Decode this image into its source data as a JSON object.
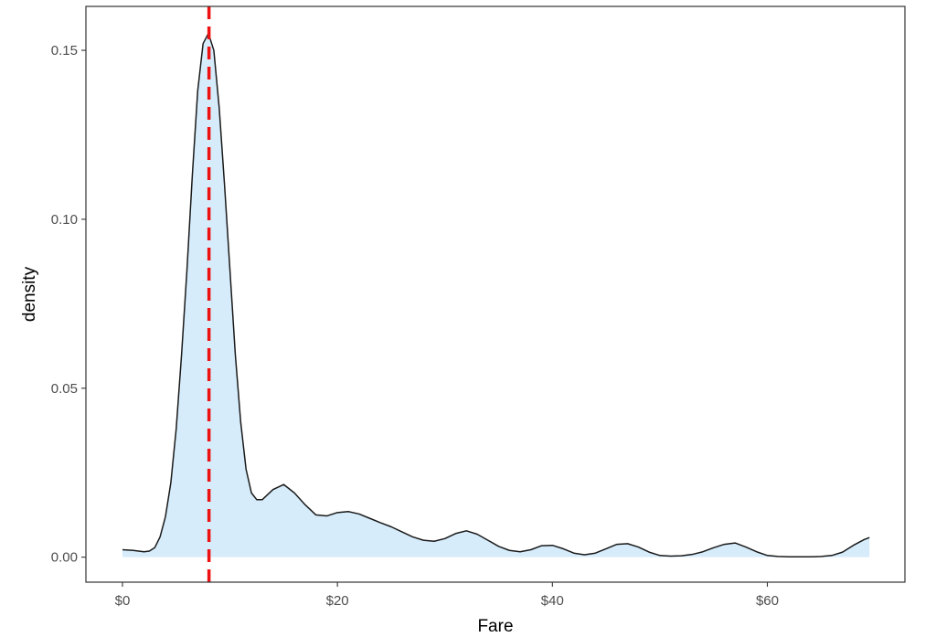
{
  "chart_data": {
    "type": "area",
    "xlabel": "Fare",
    "ylabel": "density",
    "xlim": [
      -3.4,
      72.8
    ],
    "ylim": [
      -0.0074,
      0.163
    ],
    "x_ticks": [
      0,
      20,
      40,
      60
    ],
    "x_tick_labels": [
      "$0",
      "$20",
      "$40",
      "$60"
    ],
    "y_ticks": [
      0.0,
      0.05,
      0.1,
      0.15
    ],
    "y_tick_labels": [
      "0.00",
      "0.05",
      "0.10",
      "0.15"
    ],
    "grid": false,
    "reference_line": {
      "x": 8.05,
      "style": "dashed"
    },
    "series": [
      {
        "x": [
          0,
          1,
          2,
          2.5,
          3,
          3.5,
          4,
          4.5,
          5,
          5.5,
          6,
          6.5,
          7,
          7.5,
          8,
          8.5,
          9,
          9.5,
          10,
          10.5,
          11,
          11.5,
          12,
          12.5,
          13,
          14,
          15,
          16,
          17,
          18,
          19,
          20,
          21,
          22,
          23,
          24,
          25,
          26,
          27,
          28,
          29,
          30,
          31,
          32,
          33,
          34,
          35,
          36,
          37,
          38,
          39,
          40,
          41,
          42,
          43,
          44,
          45,
          46,
          47,
          48,
          49,
          50,
          51,
          52,
          53,
          54,
          55,
          56,
          57,
          58,
          59,
          60,
          61,
          62,
          63,
          64,
          65,
          66,
          67,
          68,
          69,
          69.5
        ],
        "values": [
          0.0022,
          0.002,
          0.0016,
          0.0018,
          0.0028,
          0.006,
          0.012,
          0.022,
          0.038,
          0.06,
          0.085,
          0.113,
          0.138,
          0.152,
          0.155,
          0.15,
          0.133,
          0.11,
          0.085,
          0.06,
          0.04,
          0.026,
          0.019,
          0.017,
          0.017,
          0.02,
          0.0215,
          0.019,
          0.0155,
          0.0125,
          0.0122,
          0.0132,
          0.0135,
          0.0128,
          0.0115,
          0.0102,
          0.009,
          0.0075,
          0.006,
          0.005,
          0.0047,
          0.0055,
          0.007,
          0.0078,
          0.0068,
          0.005,
          0.0032,
          0.002,
          0.0016,
          0.0022,
          0.0034,
          0.0035,
          0.0025,
          0.0012,
          0.0007,
          0.0012,
          0.0025,
          0.0038,
          0.004,
          0.003,
          0.0015,
          0.0005,
          0.0003,
          0.0004,
          0.0008,
          0.0016,
          0.0028,
          0.0038,
          0.0042,
          0.003,
          0.0016,
          0.0005,
          0.0002,
          0.0001,
          0.0001,
          0.0001,
          0.0002,
          0.0005,
          0.0015,
          0.0035,
          0.0052,
          0.0058
        ]
      }
    ],
    "colors": {
      "fill": "#d6ecfb",
      "line": "#1a1a1a",
      "reference_line": "#ee1111",
      "panel_border": "#333333"
    }
  }
}
